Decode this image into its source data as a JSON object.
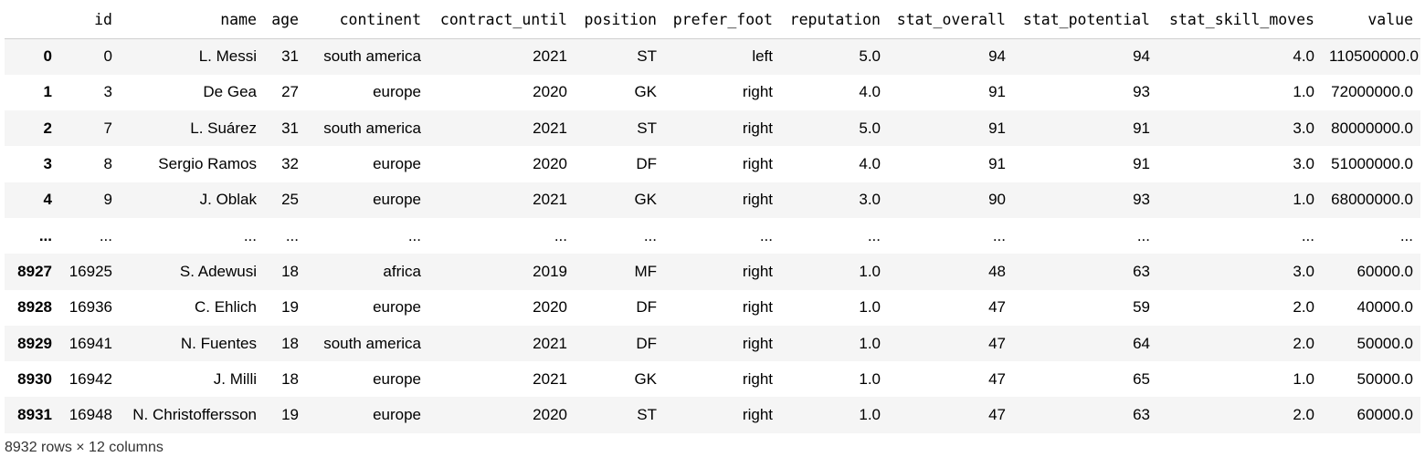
{
  "table": {
    "index_header": "",
    "columns": [
      "id",
      "name",
      "age",
      "continent",
      "contract_until",
      "position",
      "prefer_foot",
      "reputation",
      "stat_overall",
      "stat_potential",
      "stat_skill_moves",
      "value"
    ],
    "rows": [
      {
        "index": "0",
        "cells": [
          "0",
          "L. Messi",
          "31",
          "south america",
          "2021",
          "ST",
          "left",
          "5.0",
          "94",
          "94",
          "4.0",
          "110500000.0"
        ]
      },
      {
        "index": "1",
        "cells": [
          "3",
          "De Gea",
          "27",
          "europe",
          "2020",
          "GK",
          "right",
          "4.0",
          "91",
          "93",
          "1.0",
          "72000000.0"
        ]
      },
      {
        "index": "2",
        "cells": [
          "7",
          "L. Suárez",
          "31",
          "south america",
          "2021",
          "ST",
          "right",
          "5.0",
          "91",
          "91",
          "3.0",
          "80000000.0"
        ]
      },
      {
        "index": "3",
        "cells": [
          "8",
          "Sergio Ramos",
          "32",
          "europe",
          "2020",
          "DF",
          "right",
          "4.0",
          "91",
          "91",
          "3.0",
          "51000000.0"
        ]
      },
      {
        "index": "4",
        "cells": [
          "9",
          "J. Oblak",
          "25",
          "europe",
          "2021",
          "GK",
          "right",
          "3.0",
          "90",
          "93",
          "1.0",
          "68000000.0"
        ]
      },
      {
        "index": "...",
        "cells": [
          "...",
          "...",
          "...",
          "...",
          "...",
          "...",
          "...",
          "...",
          "...",
          "...",
          "...",
          "..."
        ]
      },
      {
        "index": "8927",
        "cells": [
          "16925",
          "S. Adewusi",
          "18",
          "africa",
          "2019",
          "MF",
          "right",
          "1.0",
          "48",
          "63",
          "3.0",
          "60000.0"
        ]
      },
      {
        "index": "8928",
        "cells": [
          "16936",
          "C. Ehlich",
          "19",
          "europe",
          "2020",
          "DF",
          "right",
          "1.0",
          "47",
          "59",
          "2.0",
          "40000.0"
        ]
      },
      {
        "index": "8929",
        "cells": [
          "16941",
          "N. Fuentes",
          "18",
          "south america",
          "2021",
          "DF",
          "right",
          "1.0",
          "47",
          "64",
          "2.0",
          "50000.0"
        ]
      },
      {
        "index": "8930",
        "cells": [
          "16942",
          "J. Milli",
          "18",
          "europe",
          "2021",
          "GK",
          "right",
          "1.0",
          "47",
          "65",
          "1.0",
          "50000.0"
        ]
      },
      {
        "index": "8931",
        "cells": [
          "16948",
          "N. Christoffersson",
          "19",
          "europe",
          "2020",
          "ST",
          "right",
          "1.0",
          "47",
          "63",
          "2.0",
          "60000.0"
        ]
      }
    ]
  },
  "footer": "8932 rows × 12 columns"
}
